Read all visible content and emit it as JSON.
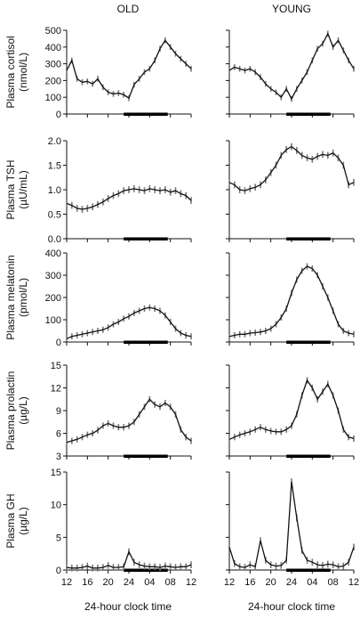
{
  "figure": {
    "column_titles": [
      "OLD",
      "YOUNG"
    ],
    "xlabel": "24-hour clock time",
    "x_tick_labels": [
      "12",
      "16",
      "20",
      "24",
      "04",
      "08",
      "12"
    ],
    "colors": {
      "line": "#111111",
      "error": "#777777",
      "night_bar": "#000000"
    }
  },
  "chart_data": [
    {
      "type": "line",
      "panel_row": 0,
      "ylabel_lines": [
        "Plasma cortisol",
        "(nmol/L)"
      ],
      "ylim": [
        0,
        500
      ],
      "y_ticks": [
        0,
        100,
        200,
        300,
        400,
        500
      ],
      "y_tick_labels": [
        "0",
        "100",
        "200",
        "300",
        "400",
        "500"
      ],
      "night_bar": [
        23,
        31.5
      ],
      "series": [
        {
          "column": "OLD",
          "x": [
            12,
            13,
            14,
            15,
            16,
            17,
            18,
            19,
            20,
            21,
            22,
            23,
            24,
            25,
            26,
            27,
            28,
            29,
            30,
            31,
            32,
            33,
            34,
            35,
            36
          ],
          "values": [
            260,
            320,
            210,
            190,
            195,
            180,
            210,
            160,
            130,
            120,
            125,
            115,
            95,
            175,
            210,
            250,
            270,
            320,
            390,
            440,
            400,
            360,
            330,
            300,
            270
          ]
        },
        {
          "column": "YOUNG",
          "x": [
            12,
            13,
            14,
            15,
            16,
            17,
            18,
            19,
            20,
            21,
            22,
            23,
            24,
            25,
            26,
            27,
            28,
            29,
            30,
            31,
            32,
            33,
            34,
            35,
            36
          ],
          "values": [
            260,
            280,
            270,
            260,
            270,
            250,
            220,
            180,
            150,
            130,
            100,
            150,
            90,
            150,
            200,
            250,
            320,
            390,
            420,
            480,
            400,
            440,
            380,
            320,
            270
          ]
        }
      ]
    },
    {
      "type": "line",
      "panel_row": 1,
      "ylabel_lines": [
        "Plasma TSH",
        "(µU/mL)"
      ],
      "ylim": [
        0,
        2
      ],
      "y_ticks": [
        0,
        0.5,
        1,
        1.5,
        2
      ],
      "y_tick_labels": [
        "0.0",
        "0.5",
        "1.0",
        "1.5",
        "2.0"
      ],
      "night_bar": [
        23,
        31.5
      ],
      "series": [
        {
          "column": "OLD",
          "x": [
            12,
            13,
            14,
            15,
            16,
            17,
            18,
            19,
            20,
            21,
            22,
            23,
            24,
            25,
            26,
            27,
            28,
            29,
            30,
            31,
            32,
            33,
            34,
            35,
            36
          ],
          "values": [
            0.72,
            0.68,
            0.62,
            0.6,
            0.62,
            0.65,
            0.7,
            0.75,
            0.82,
            0.88,
            0.92,
            0.98,
            1.0,
            1.02,
            1.0,
            0.98,
            1.02,
            1.0,
            0.98,
            1.0,
            0.95,
            0.98,
            0.92,
            0.88,
            0.78
          ]
        },
        {
          "column": "YOUNG",
          "x": [
            12,
            13,
            14,
            15,
            16,
            17,
            18,
            19,
            20,
            21,
            22,
            23,
            24,
            25,
            26,
            27,
            28,
            29,
            30,
            31,
            32,
            33,
            34,
            35,
            36
          ],
          "values": [
            1.15,
            1.1,
            1.0,
            0.98,
            1.02,
            1.05,
            1.1,
            1.2,
            1.35,
            1.5,
            1.7,
            1.82,
            1.88,
            1.8,
            1.7,
            1.65,
            1.62,
            1.68,
            1.72,
            1.7,
            1.75,
            1.65,
            1.5,
            1.1,
            1.15
          ]
        }
      ]
    },
    {
      "type": "line",
      "panel_row": 2,
      "ylabel_lines": [
        "Plasma melatonin",
        "(pmol/L)"
      ],
      "ylim": [
        0,
        400
      ],
      "y_ticks": [
        0,
        100,
        200,
        300,
        400
      ],
      "y_tick_labels": [
        "0",
        "100",
        "200",
        "300",
        "400"
      ],
      "night_bar": [
        23,
        31.5
      ],
      "series": [
        {
          "column": "OLD",
          "x": [
            12,
            13,
            14,
            15,
            16,
            17,
            18,
            19,
            20,
            21,
            22,
            23,
            24,
            25,
            26,
            27,
            28,
            29,
            30,
            31,
            32,
            33,
            34,
            35,
            36
          ],
          "values": [
            15,
            25,
            30,
            35,
            40,
            45,
            50,
            55,
            65,
            80,
            90,
            105,
            115,
            130,
            140,
            150,
            155,
            150,
            140,
            120,
            90,
            60,
            40,
            30,
            25
          ]
        },
        {
          "column": "YOUNG",
          "x": [
            12,
            13,
            14,
            15,
            16,
            17,
            18,
            19,
            20,
            21,
            22,
            23,
            24,
            25,
            26,
            27,
            28,
            29,
            30,
            31,
            32,
            33,
            34,
            35,
            36
          ],
          "values": [
            25,
            30,
            35,
            35,
            40,
            42,
            45,
            50,
            60,
            80,
            110,
            150,
            220,
            280,
            320,
            340,
            330,
            300,
            250,
            200,
            140,
            80,
            50,
            40,
            35
          ]
        }
      ]
    },
    {
      "type": "line",
      "panel_row": 3,
      "ylabel_lines": [
        "Plasma prolactin",
        "(µg/L)"
      ],
      "ylim": [
        3,
        15
      ],
      "y_ticks": [
        3,
        6,
        9,
        12,
        15
      ],
      "y_tick_labels": [
        "3",
        "6",
        "9",
        "12",
        "15"
      ],
      "night_bar": [
        23,
        31.5
      ],
      "series": [
        {
          "column": "OLD",
          "x": [
            12,
            13,
            14,
            15,
            16,
            17,
            18,
            19,
            20,
            21,
            22,
            23,
            24,
            25,
            26,
            27,
            28,
            29,
            30,
            31,
            32,
            33,
            34,
            35,
            36
          ],
          "values": [
            4.8,
            5.0,
            5.2,
            5.5,
            5.8,
            6.0,
            6.4,
            7.0,
            7.3,
            7.0,
            6.8,
            6.8,
            7.0,
            7.5,
            8.5,
            9.5,
            10.5,
            9.8,
            9.5,
            10.0,
            9.5,
            8.5,
            6.5,
            5.5,
            5.0
          ]
        },
        {
          "column": "YOUNG",
          "x": [
            12,
            13,
            14,
            15,
            16,
            17,
            18,
            19,
            20,
            21,
            22,
            23,
            24,
            25,
            26,
            27,
            28,
            29,
            30,
            31,
            32,
            33,
            34,
            35,
            36
          ],
          "values": [
            5.2,
            5.5,
            5.8,
            6.0,
            6.2,
            6.5,
            6.8,
            6.5,
            6.3,
            6.2,
            6.2,
            6.5,
            7.0,
            8.5,
            11.0,
            13.0,
            12.0,
            10.5,
            11.5,
            12.5,
            11.0,
            9.0,
            6.5,
            5.5,
            5.3
          ]
        }
      ]
    },
    {
      "type": "line",
      "panel_row": 4,
      "ylabel_lines": [
        "Plasma GH",
        "(µg/L)"
      ],
      "ylim": [
        0,
        15
      ],
      "y_ticks": [
        0,
        5,
        10,
        15
      ],
      "y_tick_labels": [
        "0",
        "5",
        "10",
        "15"
      ],
      "night_bar": [
        23,
        31.5
      ],
      "series": [
        {
          "column": "OLD",
          "x": [
            12,
            13,
            14,
            15,
            16,
            17,
            18,
            19,
            20,
            21,
            22,
            23,
            24,
            25,
            26,
            27,
            28,
            29,
            30,
            31,
            32,
            33,
            34,
            35,
            36
          ],
          "values": [
            0.4,
            0.3,
            0.3,
            0.4,
            0.6,
            0.3,
            0.3,
            0.4,
            0.7,
            0.4,
            0.4,
            0.5,
            2.8,
            1.2,
            0.8,
            0.6,
            0.5,
            0.5,
            0.4,
            0.6,
            0.5,
            0.4,
            0.5,
            0.5,
            0.8
          ]
        },
        {
          "column": "YOUNG",
          "x": [
            12,
            13,
            14,
            15,
            16,
            17,
            18,
            19,
            20,
            21,
            22,
            23,
            24,
            25,
            26,
            27,
            28,
            29,
            30,
            31,
            32,
            33,
            34,
            35,
            36
          ],
          "values": [
            3.5,
            1.0,
            0.5,
            0.4,
            0.8,
            0.5,
            4.5,
            1.5,
            0.8,
            0.6,
            0.7,
            1.5,
            13.5,
            8.0,
            3.0,
            1.5,
            1.2,
            0.8,
            0.7,
            0.9,
            0.8,
            0.5,
            0.6,
            1.2,
            3.5
          ]
        }
      ]
    }
  ]
}
